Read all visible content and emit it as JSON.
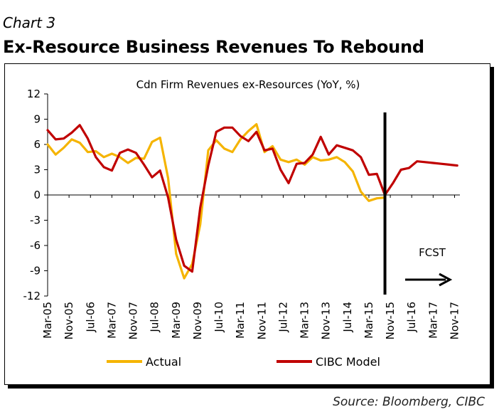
{
  "header": {
    "chart_number": "Chart 3",
    "title": "Ex-Resource Business Revenues To Rebound"
  },
  "footer": {
    "source": "Source: Bloomberg, CIBC"
  },
  "colors": {
    "actual": "#f5b400",
    "model": "#c00000",
    "axis": "#000000"
  },
  "chart_data": {
    "type": "line",
    "title": "Cdn Firm Revenues ex-Resources (YoY, %)",
    "xlabel": "",
    "ylabel": "",
    "ylim": [
      -12,
      12
    ],
    "yticks": [
      12,
      9,
      6,
      3,
      0,
      -3,
      -6,
      -9,
      -12
    ],
    "x_tick_labels": [
      "Mar-05",
      "Nov-05",
      "Jul-06",
      "Mar-07",
      "Nov-07",
      "Jul-08",
      "Mar-09",
      "Nov-09",
      "Jul-10",
      "Mar-11",
      "Nov-11",
      "Jul-12",
      "Mar-13",
      "Nov-13",
      "Jul-14",
      "Mar-15",
      "Nov-15",
      "Jul-16",
      "Mar-17",
      "Nov-17"
    ],
    "legend_position": "bottom",
    "grid": false,
    "series": [
      {
        "name": "Actual",
        "color": "#f5b400",
        "points": [
          [
            "Mar-05",
            6.0
          ],
          [
            "Jun-05",
            4.8
          ],
          [
            "Sep-05",
            5.6
          ],
          [
            "Dec-05",
            6.6
          ],
          [
            "Mar-06",
            6.2
          ],
          [
            "Jun-06",
            5.1
          ],
          [
            "Sep-06",
            5.2
          ],
          [
            "Dec-06",
            4.5
          ],
          [
            "Mar-07",
            4.9
          ],
          [
            "Jun-07",
            4.5
          ],
          [
            "Sep-07",
            3.8
          ],
          [
            "Dec-07",
            4.4
          ],
          [
            "Mar-08",
            4.3
          ],
          [
            "Jun-08",
            6.3
          ],
          [
            "Sep-08",
            6.8
          ],
          [
            "Dec-08",
            2.0
          ],
          [
            "Mar-09",
            -7.0
          ],
          [
            "Jun-09",
            -9.9
          ],
          [
            "Sep-09",
            -8.2
          ],
          [
            "Dec-09",
            -3.5
          ],
          [
            "Mar-10",
            5.3
          ],
          [
            "Jun-10",
            6.5
          ],
          [
            "Sep-10",
            5.5
          ],
          [
            "Dec-10",
            5.1
          ],
          [
            "Mar-11",
            6.6
          ],
          [
            "Jun-11",
            7.6
          ],
          [
            "Sep-11",
            8.4
          ],
          [
            "Dec-11",
            5.1
          ],
          [
            "Mar-12",
            5.8
          ],
          [
            "Jun-12",
            4.2
          ],
          [
            "Sep-12",
            3.9
          ],
          [
            "Dec-12",
            4.2
          ],
          [
            "Mar-13",
            3.6
          ],
          [
            "Jun-13",
            4.5
          ],
          [
            "Sep-13",
            4.1
          ],
          [
            "Dec-13",
            4.2
          ],
          [
            "Mar-14",
            4.5
          ],
          [
            "Jun-14",
            3.9
          ],
          [
            "Sep-14",
            2.8
          ],
          [
            "Dec-14",
            0.4
          ],
          [
            "Mar-15",
            -0.7
          ],
          [
            "Jun-15",
            -0.4
          ],
          [
            "Sep-15",
            -0.3
          ]
        ]
      },
      {
        "name": "CIBC Model",
        "color": "#c00000",
        "points": [
          [
            "Mar-05",
            7.7
          ],
          [
            "Jun-05",
            6.6
          ],
          [
            "Sep-05",
            6.7
          ],
          [
            "Dec-05",
            7.4
          ],
          [
            "Mar-06",
            8.3
          ],
          [
            "Jun-06",
            6.7
          ],
          [
            "Sep-06",
            4.5
          ],
          [
            "Dec-06",
            3.3
          ],
          [
            "Mar-07",
            2.9
          ],
          [
            "Jun-07",
            5.0
          ],
          [
            "Sep-07",
            5.4
          ],
          [
            "Dec-07",
            5.0
          ],
          [
            "Mar-08",
            3.6
          ],
          [
            "Jun-08",
            2.1
          ],
          [
            "Sep-08",
            2.9
          ],
          [
            "Dec-08",
            -0.3
          ],
          [
            "Mar-09",
            -5.3
          ],
          [
            "Jun-09",
            -8.4
          ],
          [
            "Sep-09",
            -9.1
          ],
          [
            "Dec-09",
            -1.5
          ],
          [
            "Mar-10",
            3.5
          ],
          [
            "Jun-10",
            7.5
          ],
          [
            "Sep-10",
            8.0
          ],
          [
            "Dec-10",
            8.0
          ],
          [
            "Mar-11",
            7.0
          ],
          [
            "Jun-11",
            6.4
          ],
          [
            "Sep-11",
            7.5
          ],
          [
            "Dec-11",
            5.3
          ],
          [
            "Mar-12",
            5.5
          ],
          [
            "Jun-12",
            3.0
          ],
          [
            "Sep-12",
            1.4
          ],
          [
            "Dec-12",
            3.7
          ],
          [
            "Mar-13",
            3.8
          ],
          [
            "Jun-13",
            4.8
          ],
          [
            "Sep-13",
            6.9
          ],
          [
            "Dec-13",
            4.8
          ],
          [
            "Mar-14",
            5.9
          ],
          [
            "Jun-14",
            5.6
          ],
          [
            "Sep-14",
            5.3
          ],
          [
            "Dec-14",
            4.5
          ],
          [
            "Mar-15",
            2.4
          ],
          [
            "Jun-15",
            2.5
          ],
          [
            "Sep-15",
            0.0
          ],
          [
            "Dec-15",
            1.4
          ],
          [
            "Mar-16",
            3.0
          ],
          [
            "Jun-16",
            3.2
          ],
          [
            "Sep-16",
            4.0
          ],
          [
            "Dec-16",
            3.9
          ],
          [
            "Mar-17",
            3.8
          ],
          [
            "Jun-17",
            3.7
          ],
          [
            "Sep-17",
            3.6
          ],
          [
            "Dec-17",
            3.5
          ]
        ]
      }
    ],
    "forecast": {
      "start": "Sep-15",
      "label": "FCST"
    }
  }
}
